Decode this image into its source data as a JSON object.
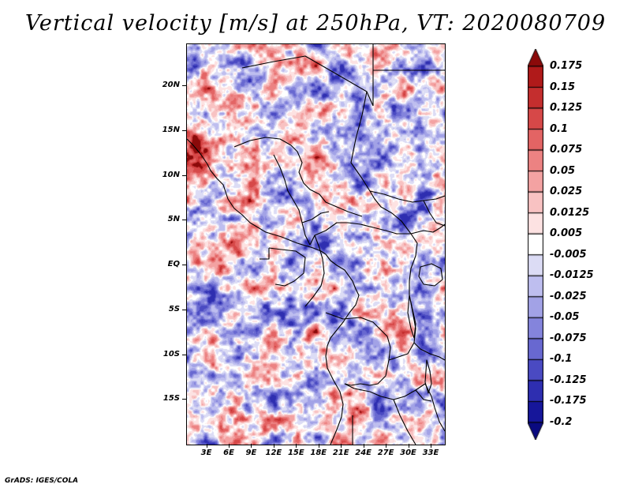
{
  "title": "Vertical velocity [m/s] at 250hPa, VT: 2020080709",
  "credit": "GrADS: IGES/COLA",
  "map": {
    "lat_labels": [
      "20N",
      "15N",
      "10N",
      "5N",
      "EQ",
      "5S",
      "10S",
      "15S"
    ],
    "lon_labels": [
      "3E",
      "6E",
      "9E",
      "12E",
      "15E",
      "18E",
      "21E",
      "24E",
      "27E",
      "30E",
      "33E"
    ],
    "lat_values": [
      20,
      15,
      10,
      5,
      0,
      -5,
      -10,
      -15
    ],
    "lon_values": [
      3,
      6,
      9,
      12,
      15,
      18,
      21,
      24,
      27,
      30,
      33
    ],
    "lat_range": [
      -20,
      24.7
    ],
    "lon_range": [
      0.3,
      34.8
    ]
  },
  "colorbar": {
    "labels": [
      "0.175",
      "0.15",
      "0.125",
      "0.1",
      "0.075",
      "0.05",
      "0.025",
      "0.0125",
      "0.005",
      "-0.005",
      "-0.0125",
      "-0.025",
      "-0.05",
      "-0.075",
      "-0.1",
      "-0.125",
      "-0.175",
      "-0.2"
    ],
    "colors": [
      "#8b0a0a",
      "#b01a1a",
      "#c42e2e",
      "#d64848",
      "#e36464",
      "#ec8282",
      "#f3a2a2",
      "#f8c2c2",
      "#fde2e2",
      "#ffffff",
      "#dcdcf5",
      "#bebeef",
      "#a2a2e6",
      "#8484dc",
      "#6868d0",
      "#4a4ac2",
      "#2e2eb0",
      "#16169a",
      "#0a0a80"
    ]
  }
}
